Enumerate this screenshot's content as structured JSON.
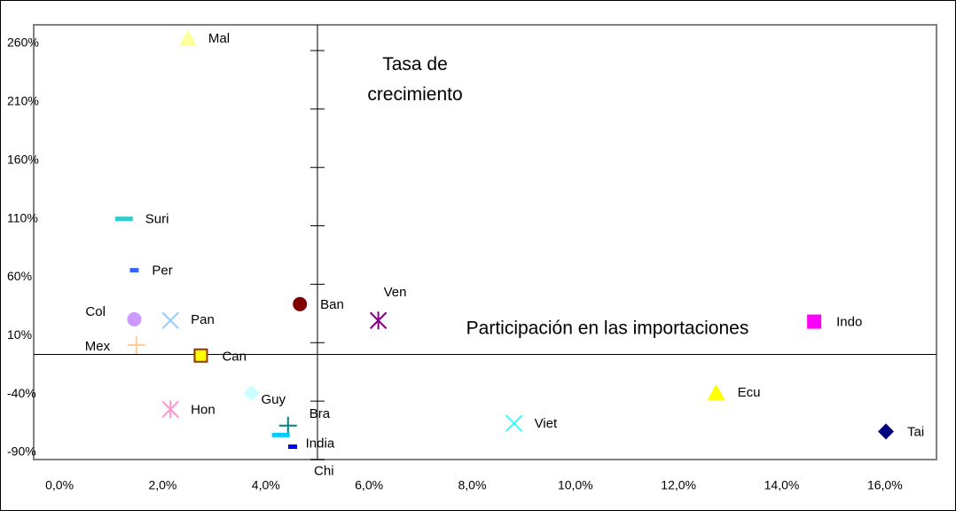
{
  "chart_data": {
    "type": "scatter",
    "annotations": [
      "Tasa de crecimiento",
      "Participación en las importaciones"
    ],
    "xlim": [
      -0.5,
      17
    ],
    "ylim": [
      -90,
      282
    ],
    "axis_cross_x": 5,
    "axis_cross_y": 0,
    "xticks": [
      {
        "value": 0,
        "label": "0,0%"
      },
      {
        "value": 2,
        "label": "2,0%"
      },
      {
        "value": 4,
        "label": "4,0%"
      },
      {
        "value": 6,
        "label": "6,0%"
      },
      {
        "value": 8,
        "label": "8,0%"
      },
      {
        "value": 10,
        "label": "10,0%"
      },
      {
        "value": 12,
        "label": "12,0%"
      },
      {
        "value": 14,
        "label": "14,0%"
      },
      {
        "value": 16,
        "label": "16,0%"
      }
    ],
    "yticks": [
      {
        "value": -90,
        "label": "-90%"
      },
      {
        "value": -40,
        "label": "-40%"
      },
      {
        "value": 10,
        "label": "10%"
      },
      {
        "value": 60,
        "label": "60%"
      },
      {
        "value": 110,
        "label": "110%"
      },
      {
        "value": 160,
        "label": "160%"
      },
      {
        "value": 210,
        "label": "210%"
      },
      {
        "value": 260,
        "label": "260%"
      }
    ],
    "series": [
      {
        "name": "Mal",
        "color": "#ffff99",
        "marker": "triangle",
        "x": [
          2.49
        ],
        "values": [
          270
        ]
      },
      {
        "name": "Suri",
        "color": "#33cccc",
        "marker": "dash",
        "x": [
          1.25
        ],
        "values": [
          116
        ]
      },
      {
        "name": "Per",
        "color": "#3366ff",
        "marker": "smalldash",
        "x": [
          1.45
        ],
        "values": [
          72
        ]
      },
      {
        "name": "Col",
        "color": "#cc99ff",
        "marker": "circle",
        "x": [
          1.45
        ],
        "values": [
          30
        ]
      },
      {
        "name": "Pan",
        "color": "#99ccff",
        "marker": "x",
        "x": [
          2.15
        ],
        "values": [
          29
        ]
      },
      {
        "name": "Mex",
        "color": "#ffcc99",
        "marker": "plus",
        "x": [
          1.49
        ],
        "values": [
          8
        ]
      },
      {
        "name": "Can",
        "color": "#ffff00",
        "marker": "square-outline",
        "x": [
          2.74
        ],
        "values": [
          -1
        ]
      },
      {
        "name": "Ban",
        "color": "#800000",
        "marker": "circle",
        "x": [
          4.66
        ],
        "values": [
          43
        ]
      },
      {
        "name": "Ven",
        "color": "#800080",
        "marker": "star",
        "x": [
          6.18
        ],
        "values": [
          29
        ]
      },
      {
        "name": "Indo",
        "color": "#ff00ff",
        "marker": "square",
        "x": [
          14.63
        ],
        "values": [
          28
        ]
      },
      {
        "name": "Guy",
        "color": "#ccffff",
        "marker": "diamond",
        "x": [
          3.72
        ],
        "values": [
          -33
        ]
      },
      {
        "name": "Hon",
        "color": "#ff99cc",
        "marker": "star",
        "x": [
          2.15
        ],
        "values": [
          -47
        ]
      },
      {
        "name": "Bra",
        "color": "#008080",
        "marker": "plus",
        "x": [
          4.43
        ],
        "values": [
          -61
        ]
      },
      {
        "name": "India",
        "color": "#00ccff",
        "marker": "dash",
        "x": [
          4.29
        ],
        "values": [
          -69
        ]
      },
      {
        "name": "Chi",
        "color": "#0000ff",
        "marker": "smalldash",
        "x": [
          4.52
        ],
        "values": [
          -79
        ]
      },
      {
        "name": "Viet",
        "color": "#33ffff",
        "marker": "x",
        "x": [
          8.81
        ],
        "values": [
          -59
        ]
      },
      {
        "name": "Ecu",
        "color": "#ffff00",
        "marker": "triangle",
        "x": [
          12.73
        ],
        "values": [
          -33
        ]
      },
      {
        "name": "Tai",
        "color": "#000080",
        "marker": "diamond",
        "x": [
          16.02
        ],
        "values": [
          -66
        ]
      }
    ]
  }
}
